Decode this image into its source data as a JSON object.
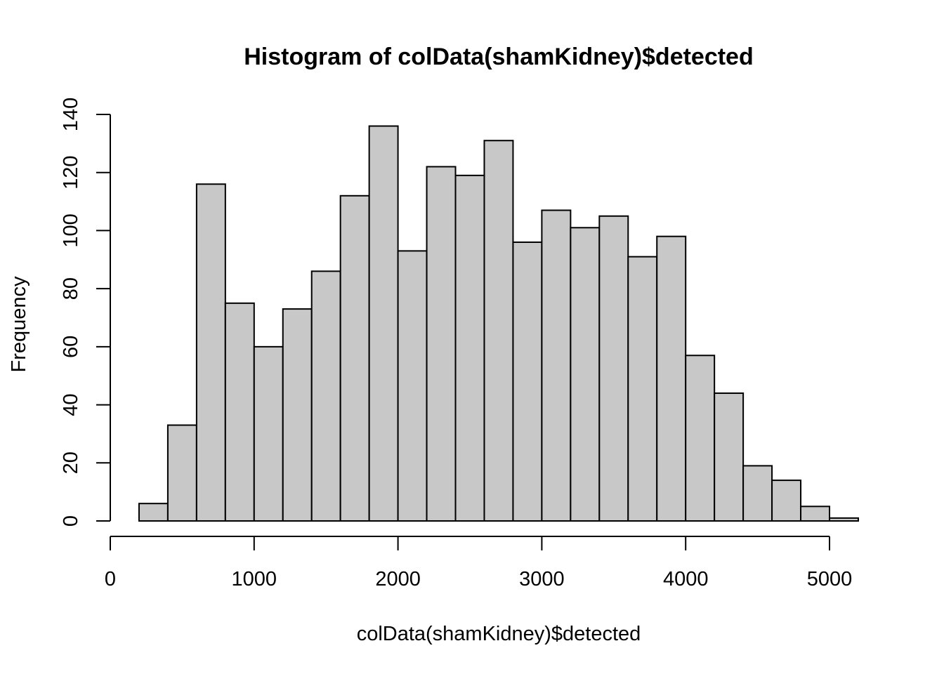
{
  "chart_data": {
    "type": "bar",
    "title": "Histogram of colData(shamKidney)$detected",
    "xlabel": "colData(shamKidney)$detected",
    "ylabel": "Frequency",
    "bin_width": 200,
    "bins": [
      {
        "x0": 200,
        "x1": 400,
        "count": 6
      },
      {
        "x0": 400,
        "x1": 600,
        "count": 33
      },
      {
        "x0": 600,
        "x1": 800,
        "count": 116
      },
      {
        "x0": 800,
        "x1": 1000,
        "count": 75
      },
      {
        "x0": 1000,
        "x1": 1200,
        "count": 60
      },
      {
        "x0": 1200,
        "x1": 1400,
        "count": 73
      },
      {
        "x0": 1400,
        "x1": 1600,
        "count": 86
      },
      {
        "x0": 1600,
        "x1": 1800,
        "count": 112
      },
      {
        "x0": 1800,
        "x1": 2000,
        "count": 136
      },
      {
        "x0": 2000,
        "x1": 2200,
        "count": 93
      },
      {
        "x0": 2200,
        "x1": 2400,
        "count": 122
      },
      {
        "x0": 2400,
        "x1": 2600,
        "count": 119
      },
      {
        "x0": 2600,
        "x1": 2800,
        "count": 131
      },
      {
        "x0": 2800,
        "x1": 3000,
        "count": 96
      },
      {
        "x0": 3000,
        "x1": 3200,
        "count": 107
      },
      {
        "x0": 3200,
        "x1": 3400,
        "count": 101
      },
      {
        "x0": 3400,
        "x1": 3600,
        "count": 105
      },
      {
        "x0": 3600,
        "x1": 3800,
        "count": 91
      },
      {
        "x0": 3800,
        "x1": 4000,
        "count": 98
      },
      {
        "x0": 4000,
        "x1": 4200,
        "count": 57
      },
      {
        "x0": 4200,
        "x1": 4400,
        "count": 44
      },
      {
        "x0": 4400,
        "x1": 4600,
        "count": 19
      },
      {
        "x0": 4600,
        "x1": 4800,
        "count": 14
      },
      {
        "x0": 4800,
        "x1": 5000,
        "count": 5
      },
      {
        "x0": 5000,
        "x1": 5200,
        "count": 1
      }
    ],
    "xlim": [
      0,
      5000
    ],
    "ylim": [
      0,
      140
    ],
    "x_ticks": [
      0,
      1000,
      2000,
      3000,
      4000,
      5000
    ],
    "y_ticks": [
      0,
      20,
      40,
      60,
      80,
      100,
      120,
      140
    ],
    "bar_color": "#c8c8c8",
    "grid": false,
    "legend": "none"
  }
}
